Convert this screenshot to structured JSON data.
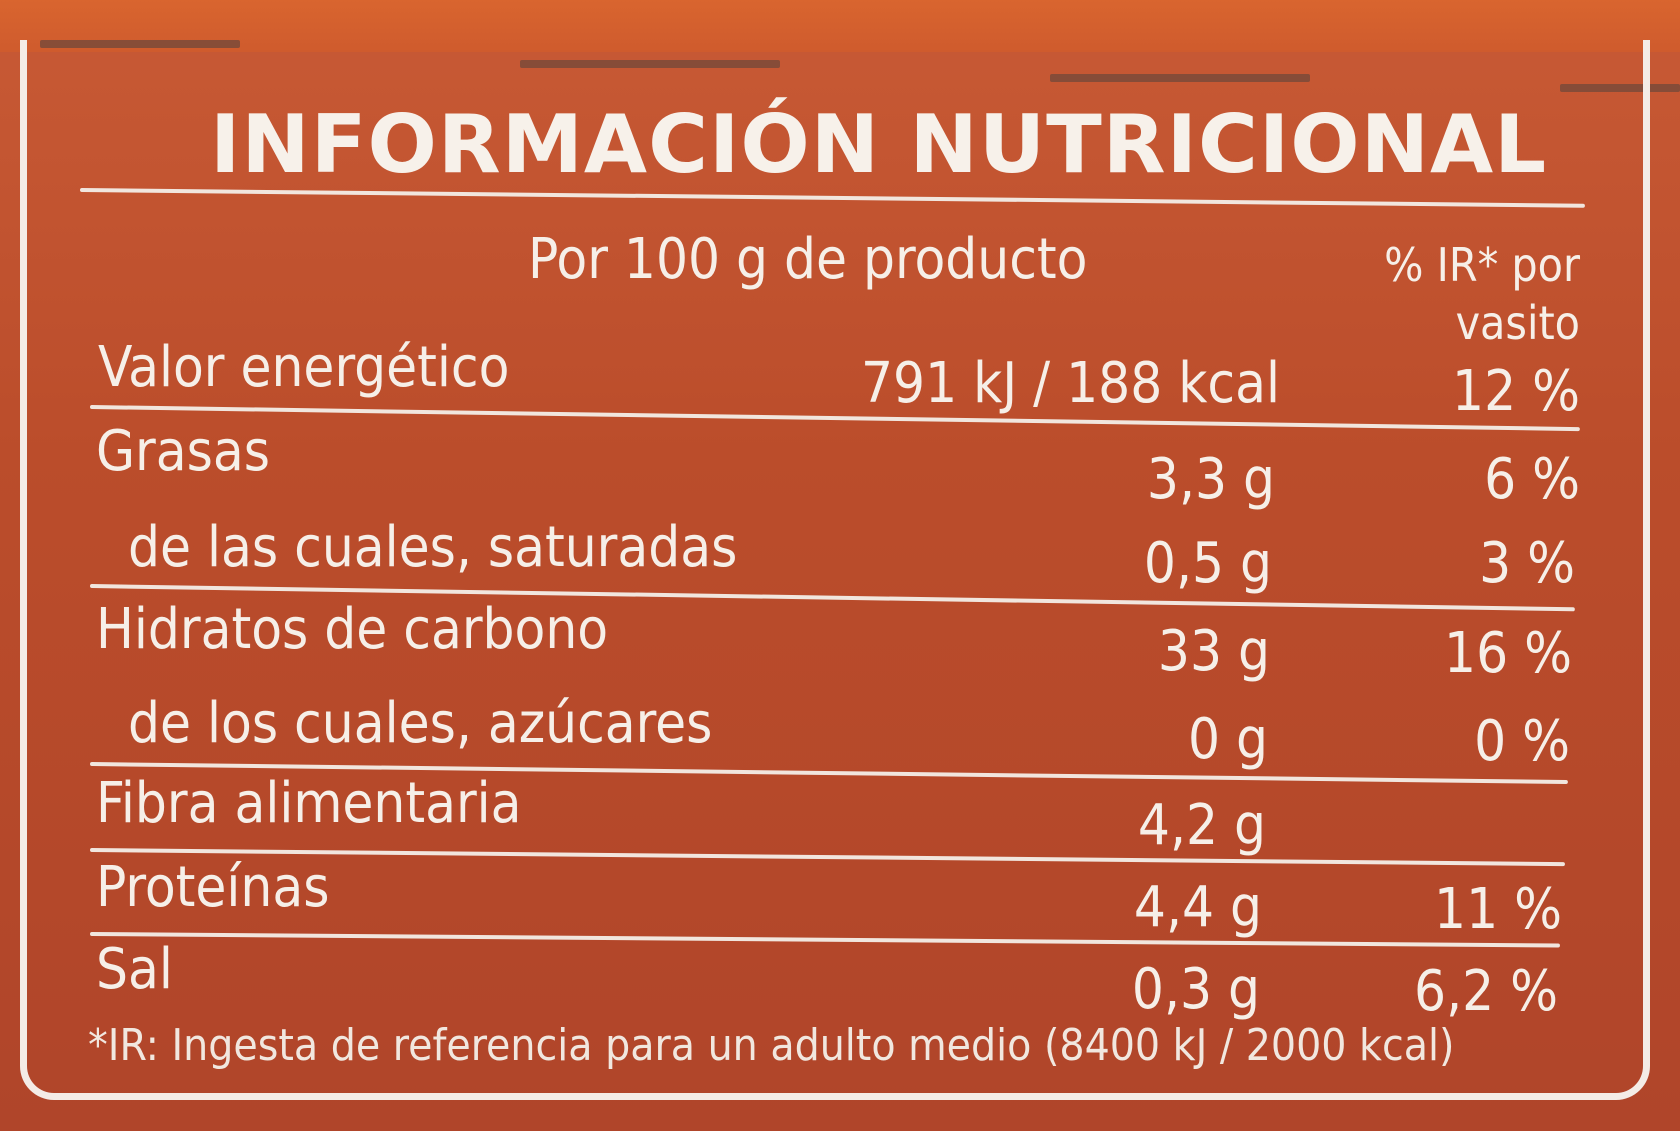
{
  "title": "INFORMACIÓN NUTRICIONAL",
  "header": {
    "per": "Por 100 g de producto",
    "ir_line1": "% IR* por",
    "ir_line2": "vasito"
  },
  "rows": [
    {
      "label": "Valor energético",
      "value": "791 kJ / 188 kcal",
      "ir": "12 %"
    },
    {
      "label": "Grasas",
      "value": "3,3 g",
      "ir": "6 %"
    },
    {
      "label": "de las cuales, saturadas",
      "value": "0,5 g",
      "ir": "3 %"
    },
    {
      "label": "Hidratos de carbono",
      "value": "33 g",
      "ir": "16 %"
    },
    {
      "label": "de los cuales, azúcares",
      "value": "0 g",
      "ir": "0 %"
    },
    {
      "label": "Fibra alimentaria",
      "value": "4,2 g",
      "ir": ""
    },
    {
      "label": "Proteínas",
      "value": "4,4 g",
      "ir": "11 %"
    },
    {
      "label": "Sal",
      "value": "0,3 g",
      "ir": "6,2 %"
    }
  ],
  "footnote": "*IR: Ingesta de referencia para un adulto medio (8400 kJ / 2000 kcal)",
  "colors": {
    "background": "#bb4d2b",
    "text": "#f6efe8"
  }
}
